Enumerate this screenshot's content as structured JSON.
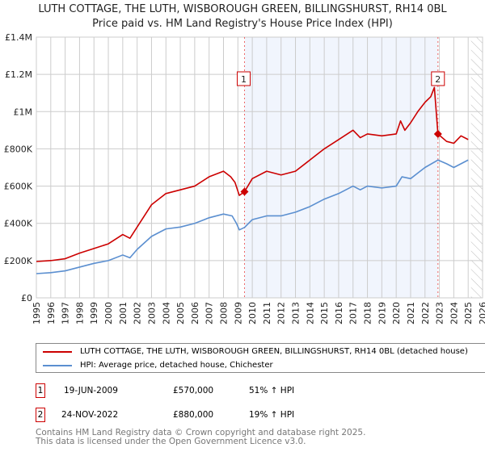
{
  "chart_data": {
    "type": "line",
    "title": "LUTH COTTAGE, THE LUTH, WISBOROUGH GREEN, BILLINGSHURST, RH14 0BL",
    "subtitle": "Price paid vs. HM Land Registry's House Price Index (HPI)",
    "xlim": [
      1995,
      2026
    ],
    "ylim": [
      0,
      1400000
    ],
    "x_ticks": [
      "1995",
      "1996",
      "1997",
      "1998",
      "1999",
      "2000",
      "2001",
      "2002",
      "2003",
      "2004",
      "2005",
      "2006",
      "2007",
      "2008",
      "2009",
      "2010",
      "2011",
      "2012",
      "2013",
      "2014",
      "2015",
      "2016",
      "2017",
      "2018",
      "2019",
      "2020",
      "2021",
      "2022",
      "2023",
      "2024",
      "2025",
      "2026"
    ],
    "y_ticks": [
      {
        "v": 0,
        "label": "£0"
      },
      {
        "v": 200000,
        "label": "£200K"
      },
      {
        "v": 400000,
        "label": "£400K"
      },
      {
        "v": 600000,
        "label": "£600K"
      },
      {
        "v": 800000,
        "label": "£800K"
      },
      {
        "v": 1000000,
        "label": "£1M"
      },
      {
        "v": 1200000,
        "label": "£1.2M"
      },
      {
        "v": 1400000,
        "label": "£1.4M"
      }
    ],
    "grid": true,
    "shaded_range": [
      2009.46,
      2022.9
    ],
    "forecast_hatch_from": 2025.2,
    "series": [
      {
        "name": "LUTH COTTAGE, THE LUTH, WISBOROUGH GREEN, BILLINGSHURST, RH14 0BL (detached house)",
        "color": "#cc0000",
        "points": [
          [
            1995,
            195000
          ],
          [
            1996,
            200000
          ],
          [
            1997,
            210000
          ],
          [
            1998,
            240000
          ],
          [
            1999,
            265000
          ],
          [
            2000,
            290000
          ],
          [
            2001,
            340000
          ],
          [
            2001.5,
            320000
          ],
          [
            2002,
            380000
          ],
          [
            2003,
            500000
          ],
          [
            2004,
            560000
          ],
          [
            2005,
            580000
          ],
          [
            2006,
            600000
          ],
          [
            2007,
            650000
          ],
          [
            2008,
            680000
          ],
          [
            2008.5,
            650000
          ],
          [
            2008.8,
            620000
          ],
          [
            2009.1,
            550000
          ],
          [
            2009.46,
            570000
          ],
          [
            2010,
            640000
          ],
          [
            2011,
            680000
          ],
          [
            2012,
            660000
          ],
          [
            2013,
            680000
          ],
          [
            2014,
            740000
          ],
          [
            2015,
            800000
          ],
          [
            2016,
            850000
          ],
          [
            2017,
            900000
          ],
          [
            2017.5,
            860000
          ],
          [
            2018,
            880000
          ],
          [
            2019,
            870000
          ],
          [
            2020,
            880000
          ],
          [
            2020.3,
            950000
          ],
          [
            2020.6,
            900000
          ],
          [
            2021,
            940000
          ],
          [
            2021.5,
            1000000
          ],
          [
            2022,
            1050000
          ],
          [
            2022.4,
            1080000
          ],
          [
            2022.65,
            1130000
          ],
          [
            2022.9,
            880000
          ],
          [
            2023.5,
            840000
          ],
          [
            2024,
            830000
          ],
          [
            2024.5,
            870000
          ],
          [
            2025,
            850000
          ]
        ]
      },
      {
        "name": "HPI: Average price, detached house, Chichester",
        "color": "#5b8fd0",
        "points": [
          [
            1995,
            130000
          ],
          [
            1996,
            135000
          ],
          [
            1997,
            145000
          ],
          [
            1998,
            165000
          ],
          [
            1999,
            185000
          ],
          [
            2000,
            200000
          ],
          [
            2001,
            230000
          ],
          [
            2001.5,
            215000
          ],
          [
            2002,
            260000
          ],
          [
            2003,
            330000
          ],
          [
            2004,
            370000
          ],
          [
            2005,
            380000
          ],
          [
            2006,
            400000
          ],
          [
            2007,
            430000
          ],
          [
            2008,
            450000
          ],
          [
            2008.6,
            440000
          ],
          [
            2008.9,
            400000
          ],
          [
            2009.1,
            365000
          ],
          [
            2009.46,
            378000
          ],
          [
            2010,
            420000
          ],
          [
            2011,
            440000
          ],
          [
            2012,
            440000
          ],
          [
            2013,
            460000
          ],
          [
            2014,
            490000
          ],
          [
            2015,
            530000
          ],
          [
            2016,
            560000
          ],
          [
            2017,
            600000
          ],
          [
            2017.5,
            580000
          ],
          [
            2018,
            600000
          ],
          [
            2019,
            590000
          ],
          [
            2020,
            600000
          ],
          [
            2020.4,
            650000
          ],
          [
            2021,
            640000
          ],
          [
            2021.5,
            670000
          ],
          [
            2022,
            700000
          ],
          [
            2022.9,
            740000
          ],
          [
            2023.5,
            720000
          ],
          [
            2024,
            700000
          ],
          [
            2024.5,
            720000
          ],
          [
            2025,
            740000
          ]
        ]
      }
    ],
    "sales": [
      {
        "id": "1",
        "x": 2009.46,
        "value": 570000,
        "date": "19-JUN-2009",
        "price": "£570,000",
        "hpi": "51% ↑ HPI"
      },
      {
        "id": "2",
        "x": 2022.9,
        "value": 880000,
        "date": "24-NOV-2022",
        "price": "£880,000",
        "hpi": "19% ↑ HPI"
      }
    ],
    "legend_position": "below"
  },
  "footer": {
    "line1": "Contains HM Land Registry data © Crown copyright and database right 2025.",
    "line2": "This data is licensed under the Open Government Licence v3.0."
  }
}
